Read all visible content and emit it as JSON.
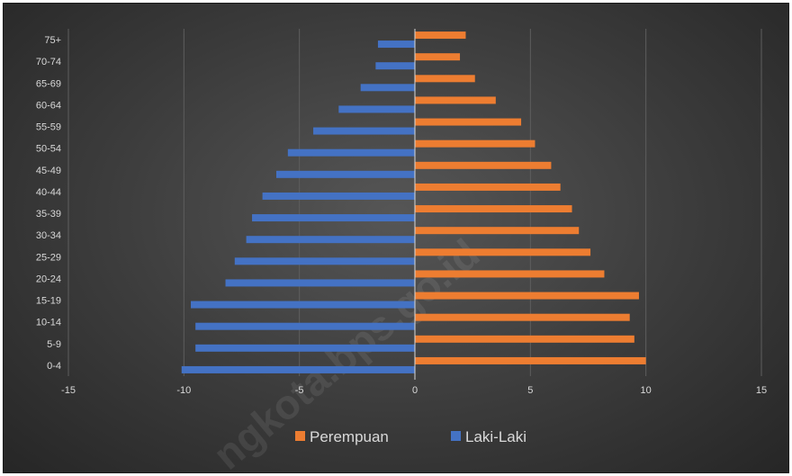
{
  "chart_data": {
    "type": "bar",
    "orientation": "horizontal",
    "categories": [
      "0-4",
      "5-9",
      "10-14",
      "15-19",
      "20-24",
      "25-29",
      "30-34",
      "35-39",
      "40-44",
      "45-49",
      "50-54",
      "55-59",
      "60-64",
      "65-69",
      "70-74",
      "75+"
    ],
    "series": [
      {
        "name": "Perempuan",
        "color": "#ED7D31",
        "values": [
          10.0,
          9.5,
          9.3,
          9.7,
          8.2,
          7.6,
          7.1,
          6.8,
          6.3,
          5.9,
          5.2,
          4.6,
          3.5,
          2.6,
          1.95,
          2.2
        ]
      },
      {
        "name": "Laki-Laki",
        "color": "#4472C4",
        "values": [
          -10.1,
          -9.5,
          -9.5,
          -9.7,
          -8.2,
          -7.8,
          -7.3,
          -7.05,
          -6.6,
          -6.0,
          -5.5,
          -4.4,
          -3.3,
          -2.35,
          -1.7,
          -1.6
        ]
      }
    ],
    "x_ticks": [
      "-15",
      "-10",
      "-5",
      "0",
      "5",
      "10",
      "15"
    ],
    "xlim": [
      -15,
      15
    ],
    "grid": "vertical",
    "legend": "bottom",
    "title": "",
    "xlabel": "",
    "ylabel": "",
    "watermark": "ngkota.bps.go.id"
  }
}
